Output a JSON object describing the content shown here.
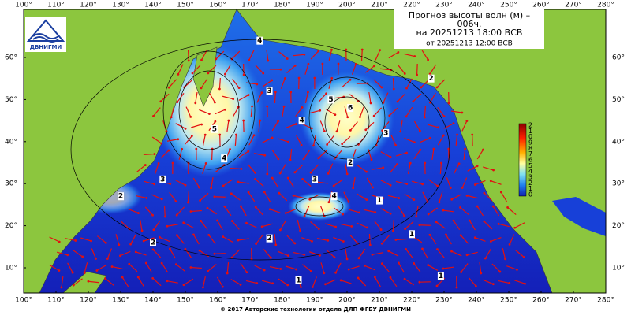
{
  "header": {
    "lines": [
      "Прогноз высоты волн (м) –",
      "006ч.",
      "на 20251213 18:00 ВСВ"
    ],
    "issued": "от 20251213 12:00 ВСВ"
  },
  "logo": {
    "text": "ДВНИГМИ"
  },
  "longitude_ticks": [
    {
      "value": 100,
      "label": "100°"
    },
    {
      "value": 110,
      "label": "110°"
    },
    {
      "value": 120,
      "label": "120°"
    },
    {
      "value": 130,
      "label": "130°"
    },
    {
      "value": 140,
      "label": "140°"
    },
    {
      "value": 150,
      "label": "150°"
    },
    {
      "value": 160,
      "label": "160°"
    },
    {
      "value": 170,
      "label": "170°"
    },
    {
      "value": 180,
      "label": "180°"
    },
    {
      "value": 190,
      "label": "190°"
    },
    {
      "value": 200,
      "label": "200°"
    },
    {
      "value": 210,
      "label": "210°"
    },
    {
      "value": 220,
      "label": "220°"
    },
    {
      "value": 230,
      "label": "230°"
    },
    {
      "value": 240,
      "label": "240°"
    },
    {
      "value": 250,
      "label": "250°"
    },
    {
      "value": 260,
      "label": "260°"
    },
    {
      "value": 270,
      "label": "270°"
    },
    {
      "value": 280,
      "label": "280°"
    }
  ],
  "latitude_ticks": [
    {
      "value": 10,
      "label": "10°"
    },
    {
      "value": 20,
      "label": "20°"
    },
    {
      "value": 30,
      "label": "30°"
    },
    {
      "value": 40,
      "label": "40°"
    },
    {
      "value": 50,
      "label": "50°"
    },
    {
      "value": 60,
      "label": "60°"
    }
  ],
  "colorbar_labels": [
    "2",
    "1",
    "0",
    "9",
    "8",
    "7",
    "6",
    "5",
    "4",
    "3",
    "2",
    "1",
    "0"
  ],
  "contour_labels": [
    {
      "text": "6",
      "lon": 201,
      "lat": 48
    },
    {
      "text": "5",
      "lon": 195,
      "lat": 50
    },
    {
      "text": "4",
      "lon": 186,
      "lat": 45
    },
    {
      "text": "3",
      "lon": 212,
      "lat": 42
    },
    {
      "text": "5",
      "lon": 159,
      "lat": 43
    },
    {
      "text": "4",
      "lon": 162,
      "lat": 36
    },
    {
      "text": "3",
      "lon": 143,
      "lat": 31
    },
    {
      "text": "2",
      "lon": 130,
      "lat": 27
    },
    {
      "text": "4",
      "lon": 196,
      "lat": 27
    },
    {
      "text": "3",
      "lon": 190,
      "lat": 31
    },
    {
      "text": "2",
      "lon": 201,
      "lat": 35
    },
    {
      "text": "1",
      "lon": 210,
      "lat": 26
    },
    {
      "text": "2",
      "lon": 176,
      "lat": 17
    },
    {
      "text": "2",
      "lon": 140,
      "lat": 16
    },
    {
      "text": "1",
      "lon": 220,
      "lat": 18
    },
    {
      "text": "1",
      "lon": 185,
      "lat": 7
    },
    {
      "text": "1",
      "lon": 229,
      "lat": 8
    },
    {
      "text": "3",
      "lon": 176,
      "lat": 52
    },
    {
      "text": "4",
      "lon": 173,
      "lat": 64
    },
    {
      "text": "2",
      "lon": 226,
      "lat": 55
    }
  ],
  "footer": "© 2017 Авторские технологии отдела ДЛП ФГБУ ДВНИГМИ"
}
